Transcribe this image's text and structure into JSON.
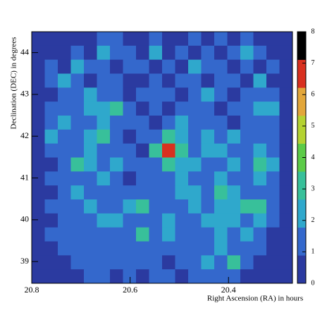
{
  "chart_data": {
    "type": "heatmap",
    "x_label": "Right Ascension (RA) in hours",
    "y_label": "Declination (DEC) in degrees",
    "xlim": [
      20.8,
      20.27
    ],
    "xticks": [
      20.8,
      20.6,
      20.4
    ],
    "ylim": [
      38.48,
      44.5
    ],
    "yticks": [
      39,
      40,
      41,
      42,
      43,
      44
    ],
    "zlim": [
      0,
      8
    ],
    "zticks": [
      0,
      1,
      2,
      3,
      4,
      5,
      6,
      7,
      8
    ],
    "colors": [
      "#2b3aa0",
      "#3468cc",
      "#2fa8cc",
      "#38c09a",
      "#5ccb48",
      "#b4d232",
      "#e2a63a",
      "#d8301f",
      "#000000"
    ],
    "values": [
      [
        0,
        0,
        0,
        0,
        0,
        1,
        1,
        0,
        0,
        1,
        0,
        0,
        1,
        0,
        1,
        0,
        1,
        0,
        0,
        0
      ],
      [
        0,
        0,
        0,
        1,
        0,
        2,
        1,
        1,
        0,
        2,
        0,
        1,
        0,
        1,
        0,
        1,
        2,
        1,
        0,
        0
      ],
      [
        0,
        1,
        0,
        2,
        1,
        1,
        0,
        1,
        1,
        0,
        1,
        0,
        2,
        1,
        1,
        0,
        1,
        0,
        1,
        0
      ],
      [
        0,
        1,
        2,
        1,
        0,
        1,
        1,
        0,
        0,
        1,
        0,
        1,
        1,
        0,
        1,
        1,
        0,
        2,
        0,
        0
      ],
      [
        0,
        0,
        1,
        1,
        2,
        1,
        1,
        0,
        1,
        1,
        1,
        0,
        1,
        2,
        1,
        0,
        1,
        1,
        1,
        0
      ],
      [
        0,
        1,
        1,
        1,
        2,
        2,
        3,
        1,
        0,
        1,
        0,
        1,
        1,
        1,
        0,
        1,
        1,
        2,
        2,
        0
      ],
      [
        0,
        1,
        2,
        1,
        1,
        2,
        1,
        1,
        1,
        0,
        1,
        2,
        1,
        1,
        1,
        0,
        1,
        1,
        1,
        0
      ],
      [
        0,
        2,
        1,
        1,
        2,
        3,
        1,
        0,
        1,
        1,
        3,
        2,
        1,
        2,
        1,
        2,
        1,
        1,
        1,
        0
      ],
      [
        0,
        1,
        1,
        1,
        2,
        1,
        1,
        1,
        0,
        3,
        7,
        3,
        1,
        2,
        2,
        1,
        1,
        2,
        1,
        0
      ],
      [
        0,
        0,
        1,
        3,
        2,
        1,
        2,
        1,
        1,
        1,
        3,
        2,
        2,
        1,
        1,
        2,
        1,
        3,
        2,
        0
      ],
      [
        0,
        1,
        1,
        1,
        1,
        2,
        1,
        0,
        1,
        1,
        1,
        2,
        1,
        1,
        2,
        1,
        1,
        2,
        1,
        0
      ],
      [
        0,
        0,
        1,
        2,
        1,
        1,
        1,
        1,
        1,
        1,
        1,
        2,
        2,
        1,
        3,
        2,
        1,
        1,
        1,
        0
      ],
      [
        0,
        1,
        1,
        1,
        2,
        1,
        1,
        2,
        3,
        1,
        1,
        1,
        2,
        1,
        2,
        2,
        3,
        3,
        1,
        0
      ],
      [
        0,
        0,
        1,
        1,
        1,
        2,
        2,
        1,
        1,
        1,
        2,
        1,
        1,
        2,
        2,
        2,
        1,
        2,
        1,
        0
      ],
      [
        0,
        1,
        1,
        1,
        1,
        1,
        1,
        1,
        3,
        1,
        2,
        1,
        1,
        1,
        2,
        1,
        2,
        1,
        0,
        0
      ],
      [
        0,
        0,
        1,
        1,
        1,
        1,
        1,
        1,
        1,
        1,
        1,
        1,
        1,
        1,
        2,
        1,
        1,
        1,
        0,
        0
      ],
      [
        0,
        0,
        0,
        1,
        1,
        1,
        1,
        1,
        1,
        1,
        0,
        1,
        1,
        2,
        1,
        3,
        1,
        0,
        0,
        0
      ],
      [
        0,
        0,
        0,
        0,
        1,
        1,
        0,
        1,
        0,
        1,
        1,
        0,
        1,
        1,
        1,
        1,
        0,
        0,
        0,
        0
      ]
    ]
  }
}
